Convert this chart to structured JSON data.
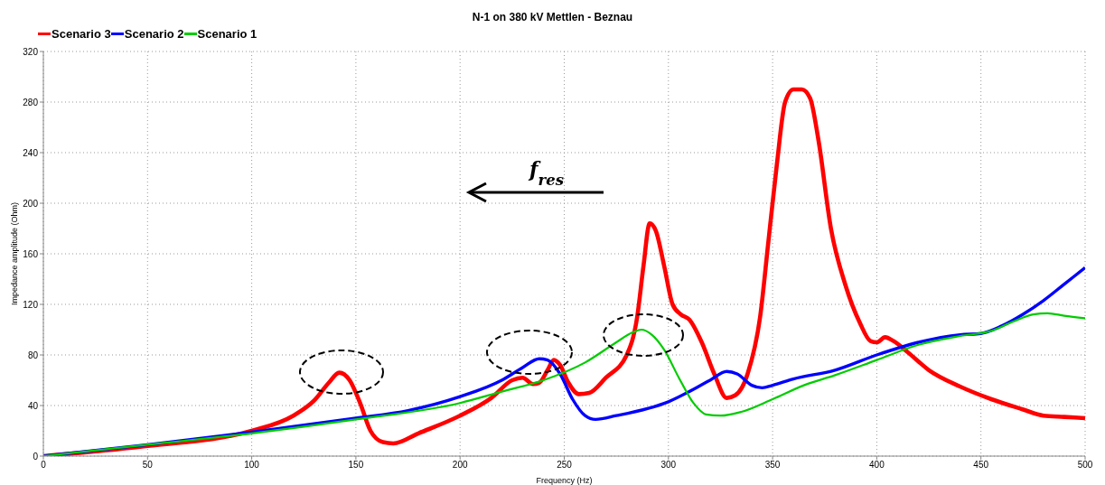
{
  "chart_data": {
    "type": "line",
    "title": "N-1 on 380 kV Mettlen - Beznau",
    "xlabel": "Frequency (Hz)",
    "ylabel": "Impedance amplitude (Ohm)",
    "annotations": [
      "f$_{res}$"
    ],
    "xlim": [
      0,
      500
    ],
    "xticks": [
      0,
      50,
      100,
      150,
      200,
      250,
      300,
      350,
      400,
      450,
      500
    ],
    "ylim": [
      0,
      320
    ],
    "yticks": [
      0,
      40,
      80,
      120,
      160,
      200,
      240,
      280,
      320
    ],
    "grid": true,
    "legend": "top left",
    "marker": "none",
    "line_style": "solid",
    "series": [
      {
        "name": "Scenario 3",
        "color": "#ff0000",
        "x": [
          0,
          50,
          100,
          120,
          130,
          137,
          142,
          147,
          152,
          157,
          163,
          168,
          180,
          200,
          215,
          225,
          230,
          235,
          238,
          242,
          245,
          248,
          252,
          257,
          262,
          270,
          280,
          285,
          288,
          291,
          294,
          298,
          302,
          306,
          310,
          316,
          322,
          328,
          332,
          338,
          344,
          348,
          352,
          356,
          360,
          364,
          368,
          372,
          378,
          385,
          392,
          397,
          400,
          404,
          408,
          415,
          425,
          440,
          455,
          470,
          480,
          490,
          500
        ],
        "values": [
          0,
          8,
          20,
          32,
          44,
          58,
          66,
          60,
          42,
          20,
          11,
          10,
          18,
          32,
          46,
          60,
          62,
          57,
          58,
          68,
          76,
          72,
          58,
          49,
          50,
          62,
          80,
          110,
          150,
          184,
          178,
          150,
          120,
          112,
          108,
          90,
          65,
          46,
          48,
          65,
          110,
          170,
          230,
          280,
          290,
          290,
          283,
          250,
          180,
          135,
          105,
          91,
          90,
          94,
          91,
          82,
          68,
          55,
          45,
          37,
          32,
          31,
          30
        ]
      },
      {
        "name": "Scenario 2",
        "color": "#0000ff",
        "x": [
          0,
          50,
          100,
          150,
          175,
          200,
          220,
          230,
          238,
          242,
          248,
          254,
          260,
          265,
          275,
          300,
          320,
          328,
          333,
          340,
          345,
          350,
          360,
          380,
          400,
          420,
          440,
          450,
          460,
          470,
          480,
          490,
          500
        ],
        "values": [
          0,
          9,
          19,
          30,
          36,
          47,
          60,
          70,
          77,
          76,
          65,
          45,
          32,
          29,
          32,
          43,
          60,
          67,
          65,
          56,
          54,
          56,
          61,
          68,
          80,
          90,
          96,
          97,
          103,
          112,
          123,
          136,
          149
        ]
      },
      {
        "name": "Scenario 1",
        "color": "#00cc00",
        "x": [
          0,
          50,
          100,
          150,
          200,
          220,
          240,
          260,
          275,
          283,
          287,
          292,
          298,
          305,
          312,
          318,
          325,
          335,
          350,
          365,
          380,
          400,
          420,
          440,
          455,
          465,
          475,
          482,
          490,
          500
        ],
        "values": [
          0,
          9,
          18,
          29,
          42,
          51,
          60,
          74,
          90,
          98,
          100,
          96,
          84,
          62,
          42,
          33,
          32,
          35,
          45,
          56,
          64,
          76,
          88,
          95,
          99,
          106,
          112,
          113,
          111,
          109
        ]
      }
    ]
  }
}
